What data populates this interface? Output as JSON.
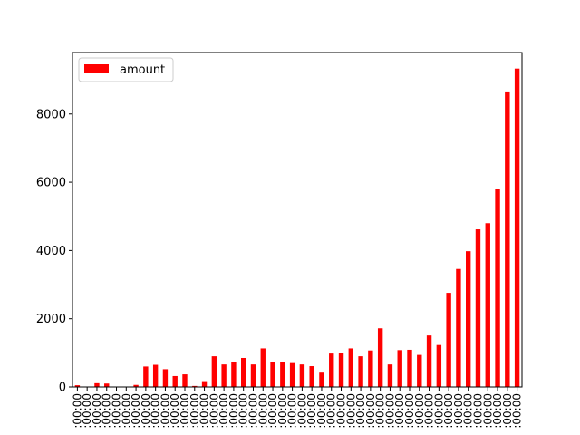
{
  "chart_data": {
    "type": "bar",
    "x_tick_label": ":00:00",
    "values": [
      50,
      0,
      110,
      100,
      0,
      0,
      60,
      600,
      650,
      520,
      320,
      370,
      30,
      170,
      900,
      660,
      720,
      850,
      660,
      1130,
      720,
      730,
      700,
      660,
      610,
      420,
      980,
      990,
      1130,
      900,
      1070,
      1720,
      660,
      1080,
      1090,
      940,
      1510,
      1230,
      2760,
      3460,
      3980,
      4620,
      4800,
      5800,
      8660,
      9330
    ],
    "series": [
      {
        "name": "amount",
        "color": "#ff0000"
      }
    ],
    "ylim": [
      0,
      9800
    ],
    "yticks": [
      0,
      2000,
      4000,
      6000,
      8000
    ],
    "legend": "top-left",
    "grid": false
  }
}
